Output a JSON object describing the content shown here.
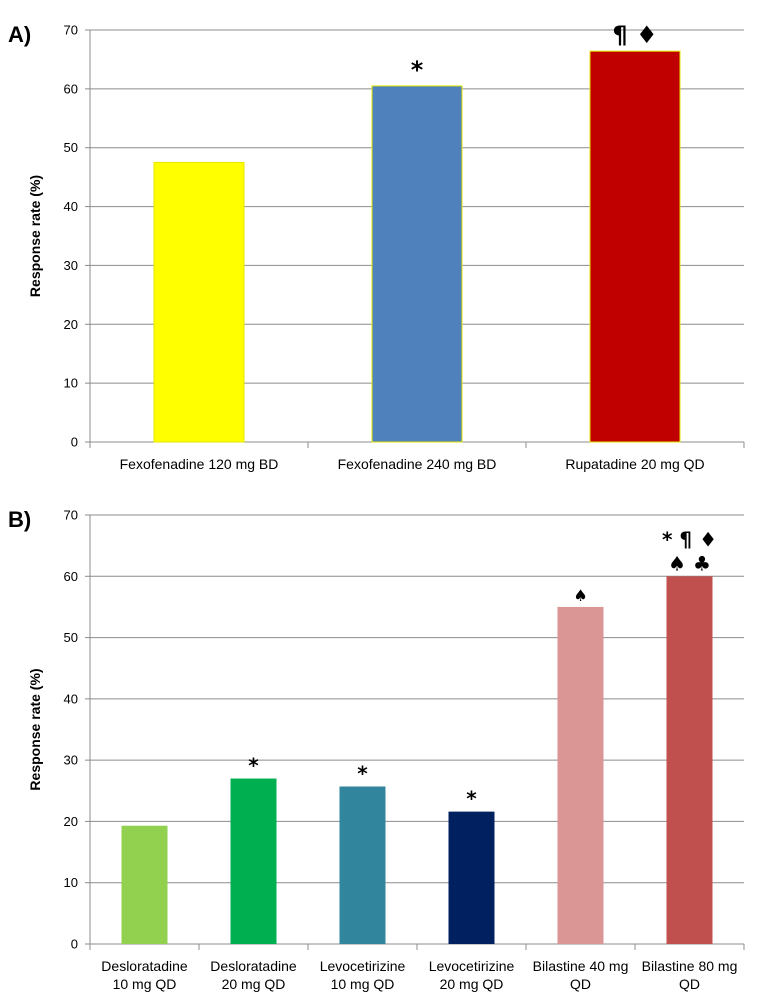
{
  "chart_data": [
    {
      "panel_label": "A)",
      "type": "bar",
      "ylabel": "Response rate (%)",
      "ylim": [
        0,
        70
      ],
      "yticks": [
        0,
        10,
        20,
        30,
        40,
        50,
        60,
        70
      ],
      "grid": true,
      "categories": [
        "Fexofenadine 120 mg BD",
        "Fexofenadine 240 mg BD",
        "Rupatadine 20 mg QD"
      ],
      "values": [
        47.5,
        60.5,
        66.4
      ],
      "colors": [
        "#ffff00",
        "#4f81bd",
        "#c00000"
      ],
      "annotations": [
        "",
        "*",
        "¶ ♦"
      ]
    },
    {
      "panel_label": "B)",
      "type": "bar",
      "ylabel": "Response rate (%)",
      "ylim": [
        0,
        70
      ],
      "yticks": [
        0,
        10,
        20,
        30,
        40,
        50,
        60,
        70
      ],
      "grid": true,
      "categories": [
        [
          "Desloratadine",
          "10 mg QD"
        ],
        [
          "Desloratadine",
          "20 mg QD"
        ],
        [
          "Levocetirizine",
          "10 mg QD"
        ],
        [
          "Levocetirizine",
          "20 mg QD"
        ],
        [
          "Bilastine 40 mg",
          "QD"
        ],
        [
          "Bilastine 80 mg",
          "QD"
        ]
      ],
      "values": [
        19.3,
        27.0,
        25.7,
        21.6,
        55.0,
        60.0
      ],
      "colors": [
        "#92d050",
        "#00b050",
        "#31859c",
        "#002060",
        "#d99694",
        "#c0504d"
      ],
      "annotations": [
        [],
        [
          "*"
        ],
        [
          "*"
        ],
        [
          "*"
        ],
        [
          "♠"
        ],
        [
          "* ¶ ♦",
          "♠ ♣"
        ]
      ]
    }
  ]
}
